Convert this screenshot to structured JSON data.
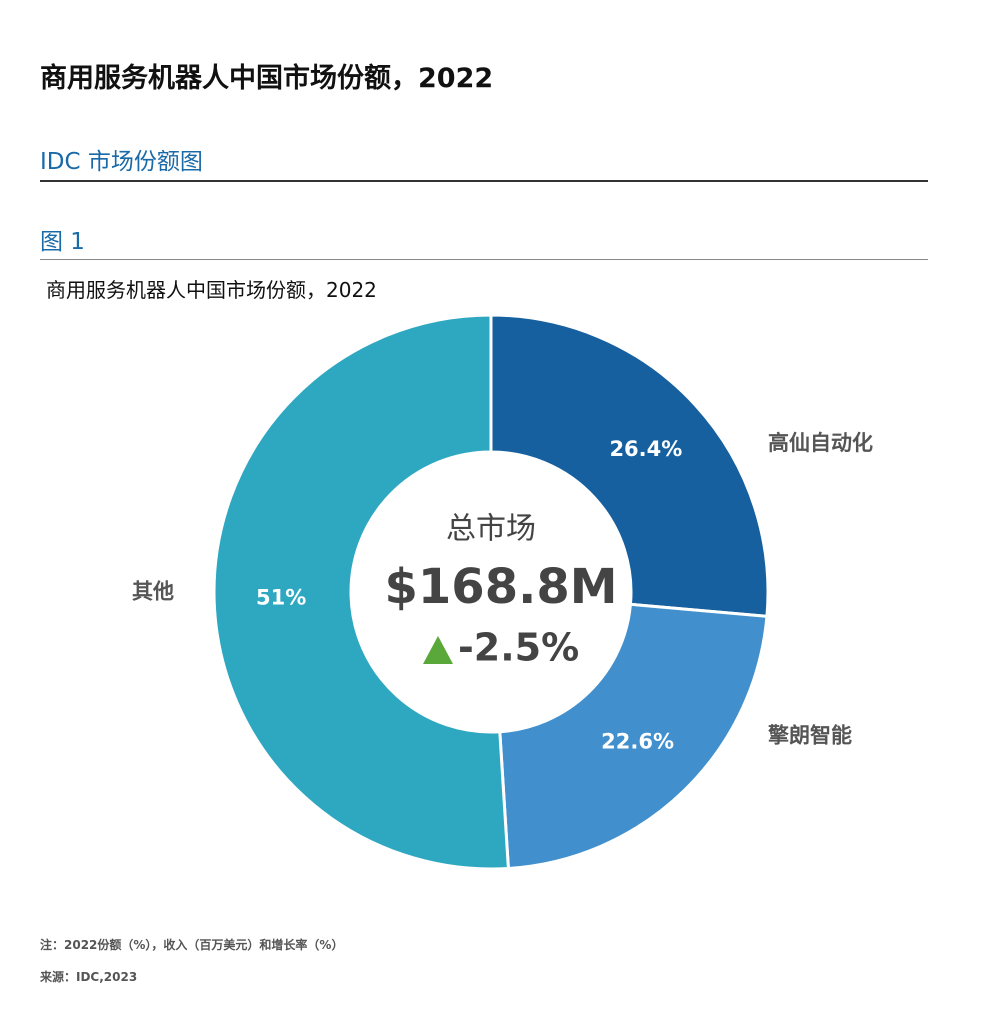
{
  "title": "商用服务机器人中国市场份额，2022",
  "subtitle": "IDC 市场份额图",
  "figure_label": "图 1",
  "chart_data": {
    "type": "donut",
    "title": "商用服务机器人中国市场份额，2022",
    "categories": [
      "高仙自动化",
      "擎朗智能",
      "其他"
    ],
    "values": [
      26.4,
      22.6,
      51
    ],
    "value_labels": [
      "26.4%",
      "22.6%",
      "51%"
    ],
    "colors": [
      "#16609f",
      "#4190cd",
      "#2ea8c1"
    ],
    "center": {
      "label": "总市场",
      "total": "$168.8M",
      "growth": "-2.5%"
    }
  },
  "notes": [
    "注：2022份额（%），收入（百万美元）和增长率（%）",
    "来源：IDC,2023"
  ]
}
